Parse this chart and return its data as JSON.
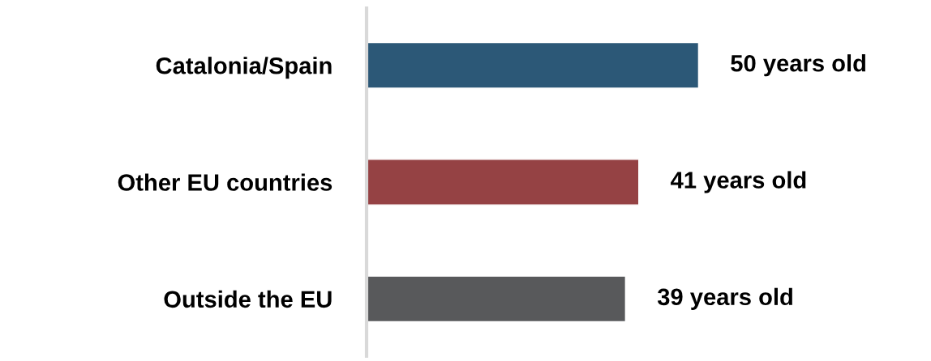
{
  "chart_data": {
    "type": "bar",
    "orientation": "horizontal",
    "categories": [
      "Catalonia/Spain",
      "Other EU countries",
      "Outside the EU"
    ],
    "values": [
      50,
      41,
      39
    ],
    "colors": [
      "#2c5877",
      "#954244",
      "#58595b"
    ],
    "value_labels": [
      "50 years old",
      "41 years old",
      "39 years old"
    ],
    "tick_labels": "y",
    "grid": false,
    "legend": false
  }
}
